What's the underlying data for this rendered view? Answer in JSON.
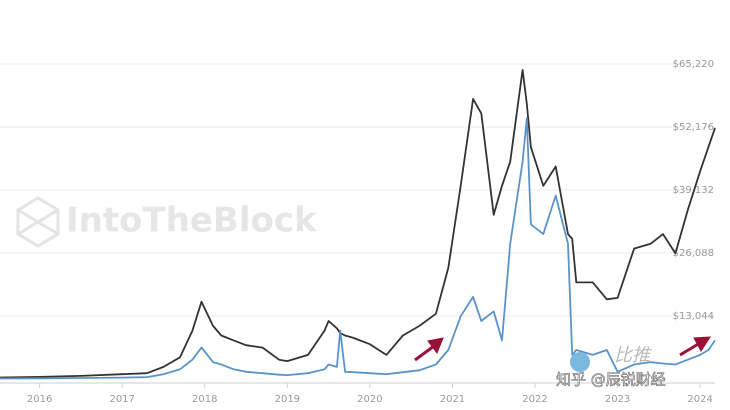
{
  "chart_data": {
    "type": "line",
    "x": [
      2015.5,
      2016,
      2016.5,
      2017,
      2017.3,
      2017.5,
      2017.7,
      2017.85,
      2017.96,
      2018.1,
      2018.2,
      2018.35,
      2018.5,
      2018.7,
      2018.9,
      2019,
      2019.25,
      2019.45,
      2019.5,
      2019.6,
      2019.64,
      2019.7,
      2019.8,
      2020,
      2020.2,
      2020.4,
      2020.6,
      2020.8,
      2020.95,
      2021.1,
      2021.25,
      2021.35,
      2021.5,
      2021.6,
      2021.7,
      2021.85,
      2021.9,
      2021.95,
      2022.1,
      2022.25,
      2022.4,
      2022.45,
      2022.5,
      2022.7,
      2022.87,
      2023,
      2023.2,
      2023.4,
      2023.55,
      2023.7,
      2023.85,
      2024,
      2024.1,
      2024.18
    ],
    "series": [
      {
        "color": "#333333",
        "values": [
          300,
          430,
          650,
          1000,
          1200,
          2500,
          4500,
          10000,
          16000,
          11000,
          9000,
          8000,
          7000,
          6500,
          4000,
          3700,
          5000,
          10000,
          12000,
          10500,
          9500,
          9000,
          8500,
          7200,
          5000,
          9000,
          11000,
          13500,
          23000,
          40000,
          58000,
          55000,
          34000,
          40000,
          45000,
          64000,
          57000,
          48000,
          40000,
          44000,
          30000,
          29000,
          20000,
          20000,
          16500,
          16800,
          27000,
          28000,
          30000,
          26000,
          35000,
          43000,
          48000,
          52000
        ]
      },
      {
        "color": "#5b93c9",
        "values": [
          100,
          150,
          200,
          300,
          400,
          1000,
          2000,
          4000,
          6500,
          3500,
          3000,
          2000,
          1500,
          1200,
          900,
          800,
          1200,
          2000,
          3000,
          2500,
          10000,
          1500,
          1400,
          1200,
          1000,
          1400,
          1800,
          3000,
          6000,
          13000,
          17000,
          12000,
          14000,
          8000,
          28000,
          45000,
          54000,
          32000,
          30000,
          38000,
          28000,
          5000,
          6000,
          5000,
          6000,
          1500,
          3000,
          3500,
          3200,
          3000,
          4000,
          5000,
          6000,
          8000
        ]
      }
    ],
    "xlim": [
      2015.52,
      2024.18
    ],
    "xticks": [
      2016,
      2017,
      2018,
      2019,
      2020,
      2021,
      2022,
      2023,
      2024
    ],
    "ylim": [
      0,
      65220
    ],
    "yticks": [
      {
        "value": 13044,
        "label": "$13,044"
      },
      {
        "value": 26088,
        "label": "$26,088"
      },
      {
        "value": 39132,
        "label": "$39,132"
      },
      {
        "value": 52176,
        "label": "$52,176"
      },
      {
        "value": 65220,
        "label": "$65,220"
      }
    ],
    "grid": true,
    "watermarks": [
      "IntoTheBlock",
      "比推",
      "知乎 @辰锐财经"
    ]
  }
}
